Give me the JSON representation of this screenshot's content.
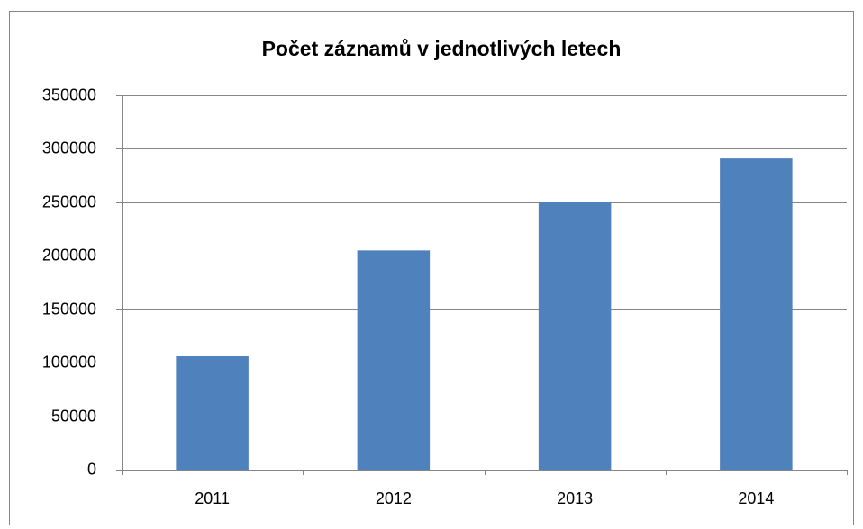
{
  "chart_data": {
    "type": "bar",
    "title": "Počet záznamů v jednotlivých letech",
    "categories": [
      "2011",
      "2012",
      "2013",
      "2014"
    ],
    "values": [
      106000,
      205000,
      250000,
      291000
    ],
    "color": "#4f81bd",
    "ylim": [
      0,
      350000
    ],
    "yticks": [
      0,
      50000,
      100000,
      150000,
      200000,
      250000,
      300000,
      350000
    ],
    "grid": true
  }
}
